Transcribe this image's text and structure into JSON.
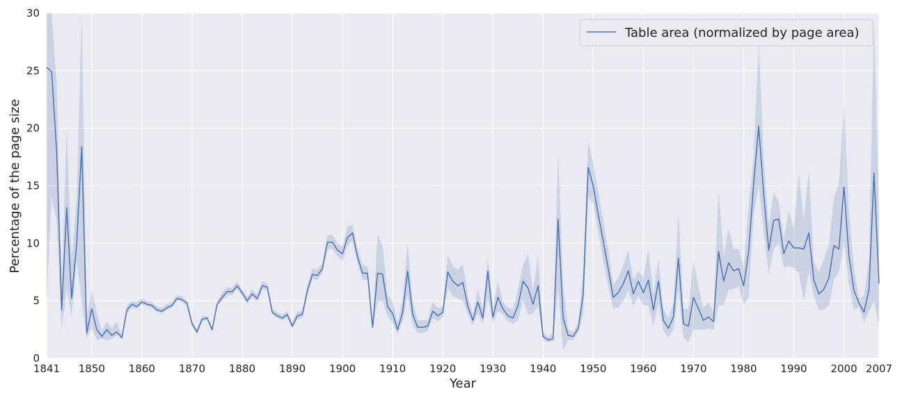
{
  "chart_data": {
    "type": "line",
    "xlabel": "Year",
    "ylabel": "Percentage of the page size",
    "xlim": [
      1841,
      2007
    ],
    "ylim": [
      0,
      30
    ],
    "xticks": [
      1841,
      1850,
      1860,
      1870,
      1880,
      1890,
      1900,
      1910,
      1920,
      1930,
      1940,
      1950,
      1960,
      1970,
      1980,
      1990,
      2000,
      2007
    ],
    "yticks": [
      0,
      5,
      10,
      15,
      20,
      25,
      30
    ],
    "grid": true,
    "legend_position": "top-right",
    "colors": {
      "line": "#4c72b0",
      "band": "#4c72b0",
      "background": "#eaeaf2",
      "grid": "#ffffff"
    },
    "series": [
      {
        "name": "Table area (normalized by page area)",
        "x": [
          1841,
          1842,
          1843,
          1844,
          1845,
          1846,
          1847,
          1848,
          1849,
          1850,
          1851,
          1852,
          1853,
          1854,
          1855,
          1856,
          1857,
          1858,
          1859,
          1860,
          1861,
          1862,
          1863,
          1864,
          1865,
          1866,
          1867,
          1868,
          1869,
          1870,
          1871,
          1872,
          1873,
          1874,
          1875,
          1876,
          1877,
          1878,
          1879,
          1880,
          1881,
          1882,
          1883,
          1884,
          1885,
          1886,
          1887,
          1888,
          1889,
          1890,
          1891,
          1892,
          1893,
          1894,
          1895,
          1896,
          1897,
          1898,
          1899,
          1900,
          1901,
          1902,
          1903,
          1904,
          1905,
          1906,
          1907,
          1908,
          1909,
          1910,
          1911,
          1912,
          1913,
          1914,
          1915,
          1916,
          1917,
          1918,
          1919,
          1920,
          1921,
          1922,
          1923,
          1924,
          1925,
          1926,
          1927,
          1928,
          1929,
          1930,
          1931,
          1932,
          1933,
          1934,
          1935,
          1936,
          1937,
          1938,
          1939,
          1940,
          1941,
          1942,
          1943,
          1944,
          1945,
          1946,
          1947,
          1948,
          1949,
          1950,
          1951,
          1952,
          1953,
          1954,
          1955,
          1956,
          1957,
          1958,
          1959,
          1960,
          1961,
          1962,
          1963,
          1964,
          1965,
          1966,
          1967,
          1968,
          1969,
          1970,
          1971,
          1972,
          1973,
          1974,
          1975,
          1976,
          1977,
          1978,
          1979,
          1980,
          1981,
          1982,
          1983,
          1984,
          1985,
          1986,
          1987,
          1988,
          1989,
          1990,
          1991,
          1992,
          1993,
          1994,
          1995,
          1996,
          1997,
          1998,
          1999,
          2000,
          2001,
          2002,
          2003,
          2004,
          2005,
          2006,
          2007
        ],
        "values": [
          25.3,
          24.9,
          18.0,
          4.2,
          13.1,
          5.2,
          10.0,
          18.4,
          2.2,
          4.3,
          2.5,
          1.9,
          2.5,
          2.0,
          2.3,
          1.8,
          4.2,
          4.7,
          4.5,
          4.9,
          4.7,
          4.6,
          4.2,
          4.1,
          4.4,
          4.6,
          5.2,
          5.1,
          4.8,
          3.0,
          2.3,
          3.4,
          3.5,
          2.5,
          4.7,
          5.3,
          5.8,
          5.8,
          6.3,
          5.7,
          5.0,
          5.6,
          5.2,
          6.3,
          6.2,
          4.0,
          3.7,
          3.5,
          3.8,
          2.8,
          3.7,
          3.8,
          5.9,
          7.3,
          7.2,
          7.8,
          10.1,
          10.1,
          9.4,
          9.1,
          10.5,
          10.9,
          8.8,
          7.4,
          7.4,
          2.7,
          7.4,
          7.3,
          4.5,
          3.9,
          2.5,
          4.0,
          7.6,
          3.8,
          2.7,
          2.7,
          2.8,
          4.1,
          3.7,
          4.0,
          7.5,
          6.7,
          6.3,
          6.6,
          4.5,
          3.3,
          4.9,
          3.5,
          7.6,
          3.6,
          5.3,
          4.3,
          3.7,
          3.5,
          4.6,
          6.7,
          6.1,
          4.7,
          6.3,
          1.9,
          1.6,
          1.7,
          12.1,
          3.5,
          2.0,
          1.9,
          2.6,
          5.5,
          16.6,
          15.0,
          12.5,
          10.2,
          7.8,
          5.3,
          5.7,
          6.5,
          7.6,
          5.6,
          6.7,
          5.7,
          6.8,
          4.2,
          6.7,
          3.3,
          2.6,
          3.6,
          8.7,
          3.0,
          2.8,
          5.3,
          4.3,
          3.3,
          3.6,
          3.2,
          9.3,
          6.7,
          8.3,
          7.6,
          7.8,
          6.3,
          9.3,
          15.2,
          20.2,
          14.3,
          9.4,
          12.0,
          12.1,
          9.1,
          10.2,
          9.6,
          9.6,
          9.5,
          10.9,
          6.8,
          5.6,
          6.0,
          7.0,
          9.8,
          9.5,
          14.9,
          8.9,
          5.9,
          4.8,
          4.0,
          6.0,
          16.1,
          6.5
        ],
        "lower": [
          5.0,
          14.0,
          12.0,
          2.5,
          6.0,
          3.6,
          8.5,
          5.0,
          1.8,
          2.6,
          1.6,
          1.7,
          1.6,
          1.7,
          2.0,
          1.7,
          3.9,
          4.4,
          4.3,
          4.7,
          4.5,
          4.4,
          4.0,
          3.9,
          4.2,
          4.4,
          5.0,
          4.9,
          4.5,
          2.8,
          2.1,
          3.2,
          3.3,
          2.3,
          4.5,
          5.0,
          5.5,
          5.5,
          6.0,
          5.4,
          4.7,
          5.3,
          4.9,
          6.0,
          5.9,
          3.8,
          3.5,
          3.3,
          3.5,
          2.6,
          3.4,
          3.5,
          5.5,
          6.9,
          6.8,
          7.5,
          9.5,
          9.5,
          8.9,
          8.5,
          9.8,
          10.2,
          8.3,
          6.8,
          6.8,
          2.5,
          4.9,
          5.0,
          3.7,
          3.0,
          2.1,
          3.2,
          5.5,
          2.9,
          2.2,
          2.2,
          2.4,
          3.5,
          3.2,
          3.6,
          6.1,
          5.4,
          5.2,
          5.0,
          3.8,
          2.9,
          3.9,
          3.0,
          5.2,
          3.1,
          4.1,
          3.8,
          3.2,
          3.0,
          3.3,
          5.1,
          3.8,
          3.9,
          4.6,
          1.6,
          1.4,
          1.5,
          6.0,
          0.7,
          1.6,
          1.6,
          2.2,
          3.8,
          14.0,
          13.5,
          11.0,
          8.5,
          6.3,
          4.3,
          4.4,
          5.0,
          5.9,
          4.5,
          5.4,
          4.6,
          4.6,
          2.8,
          4.8,
          2.4,
          1.8,
          2.5,
          6.0,
          1.8,
          1.4,
          2.5,
          2.5,
          2.5,
          2.6,
          2.5,
          4.6,
          4.6,
          6.0,
          6.0,
          6.3,
          4.6,
          5.3,
          12.5,
          15.0,
          11.0,
          7.3,
          9.5,
          10.0,
          7.9,
          8.0,
          7.9,
          7.4,
          5.0,
          7.5,
          5.4,
          4.2,
          4.2,
          4.6,
          6.8,
          7.5,
          10.0,
          6.5,
          4.2,
          4.5,
          3.1,
          4.1,
          5.0,
          2.9
        ],
        "upper": [
          30.5,
          30.5,
          24.0,
          6.2,
          20.0,
          8.5,
          14.0,
          30.5,
          3.6,
          6.0,
          4.0,
          2.4,
          3.2,
          2.6,
          3.2,
          2.0,
          4.6,
          5.0,
          4.9,
          5.2,
          5.0,
          4.9,
          4.5,
          4.4,
          4.7,
          4.9,
          5.5,
          5.4,
          5.0,
          3.3,
          2.5,
          3.7,
          3.7,
          2.7,
          5.0,
          5.7,
          6.2,
          6.1,
          6.7,
          6.0,
          5.3,
          6.0,
          5.5,
          6.7,
          6.5,
          4.3,
          4.0,
          3.8,
          4.1,
          3.1,
          4.1,
          4.1,
          6.4,
          7.8,
          7.7,
          8.3,
          10.7,
          10.7,
          10.0,
          9.7,
          11.5,
          11.6,
          9.5,
          8.1,
          8.0,
          3.0,
          10.8,
          9.8,
          5.5,
          5.0,
          3.1,
          5.1,
          10.0,
          4.9,
          3.3,
          3.3,
          3.3,
          4.9,
          4.4,
          4.5,
          9.0,
          8.0,
          7.7,
          8.2,
          5.4,
          3.8,
          6.0,
          4.3,
          8.7,
          4.3,
          6.7,
          4.9,
          4.4,
          4.3,
          6.0,
          8.1,
          9.1,
          5.8,
          9.0,
          2.3,
          1.9,
          2.2,
          18.0,
          6.5,
          2.5,
          2.3,
          3.0,
          7.5,
          18.8,
          17.0,
          14.5,
          12.0,
          9.4,
          6.4,
          7.0,
          8.1,
          9.4,
          6.8,
          7.6,
          7.0,
          9.5,
          5.6,
          8.6,
          4.3,
          3.5,
          4.8,
          12.7,
          4.3,
          4.3,
          8.5,
          6.2,
          4.4,
          4.9,
          4.0,
          14.7,
          8.9,
          11.3,
          9.5,
          9.5,
          8.0,
          13.2,
          17.6,
          27.5,
          17.3,
          11.5,
          14.4,
          13.6,
          10.4,
          12.8,
          11.3,
          16.0,
          12.0,
          16.4,
          8.4,
          7.5,
          8.6,
          9.9,
          14.0,
          15.2,
          22.2,
          12.7,
          7.9,
          5.2,
          5.4,
          8.5,
          29.5,
          12.8
        ]
      }
    ]
  }
}
